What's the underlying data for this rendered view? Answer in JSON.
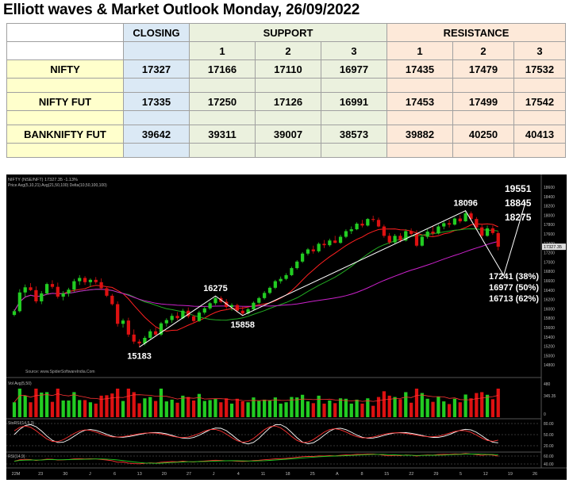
{
  "title": "Elliott waves & Market Outlook Monday, 26/09/2022",
  "table": {
    "header": {
      "closing": "CLOSING",
      "support": "SUPPORT",
      "resistance": "RESISTANCE",
      "levels": [
        "1",
        "2",
        "3"
      ]
    },
    "rows": [
      {
        "name": "NIFTY",
        "closing": "17327",
        "support": [
          "17166",
          "17110",
          "16977"
        ],
        "resistance": [
          "17435",
          "17479",
          "17532"
        ]
      },
      {
        "name": "NIFTY FUT",
        "closing": "17335",
        "support": [
          "17250",
          "17126",
          "16991"
        ],
        "resistance": [
          "17453",
          "17499",
          "17542"
        ]
      },
      {
        "name": "BANKNIFTY FUT",
        "closing": "39642",
        "support": [
          "39311",
          "39007",
          "38573"
        ],
        "resistance": [
          "39882",
          "40250",
          "40413"
        ]
      }
    ]
  },
  "chart_data": {
    "type": "candlestick",
    "panel_header": "NIFTY (NSE/NFT) 17327.35 -1.13%",
    "sub_header": "Price   Avg(5,10,21)   Avg(21,50,100)   Delta(10,50,100,100)",
    "source": "Source: www.SpiderSoftwareIndia.Com",
    "colors": {
      "up": "#22cc22",
      "down": "#dd1111",
      "avg_short": "#ff2020",
      "avg_mid": "#22aa22",
      "avg_long": "#cc22cc",
      "wave_line": "#ffffff",
      "background": "#000000"
    },
    "ylim": [
      14600,
      18600
    ],
    "y_ticks": [
      "18600",
      "18400",
      "18200",
      "18000",
      "17800",
      "17600",
      "17400",
      "17200",
      "17000",
      "16800",
      "16600",
      "16400",
      "16200",
      "16000",
      "15800",
      "15600",
      "15400",
      "15200",
      "15000",
      "14800"
    ],
    "last_price_label": "17327.35",
    "x_ticks": [
      "22M",
      "23",
      "30",
      "J",
      "6",
      "13",
      "20",
      "27",
      "J",
      "4",
      "11",
      "18",
      "25",
      "A",
      "8",
      "15",
      "22",
      "29",
      "5",
      "12",
      "19",
      "26"
    ],
    "candles": [
      {
        "o": 15870,
        "h": 15990,
        "l": 15840,
        "c": 15950
      },
      {
        "o": 15950,
        "h": 16420,
        "l": 15920,
        "c": 16350
      },
      {
        "o": 16350,
        "h": 16520,
        "l": 16250,
        "c": 16460
      },
      {
        "o": 16460,
        "h": 16550,
        "l": 16380,
        "c": 16400
      },
      {
        "o": 16400,
        "h": 16480,
        "l": 16120,
        "c": 16160
      },
      {
        "o": 16160,
        "h": 16380,
        "l": 16100,
        "c": 16330
      },
      {
        "o": 16330,
        "h": 16560,
        "l": 16300,
        "c": 16530
      },
      {
        "o": 16530,
        "h": 16610,
        "l": 16430,
        "c": 16470
      },
      {
        "o": 16470,
        "h": 16560,
        "l": 16220,
        "c": 16260
      },
      {
        "o": 16260,
        "h": 16380,
        "l": 16180,
        "c": 16330
      },
      {
        "o": 16330,
        "h": 16450,
        "l": 16260,
        "c": 16410
      },
      {
        "o": 16410,
        "h": 16640,
        "l": 16360,
        "c": 16590
      },
      {
        "o": 16590,
        "h": 16720,
        "l": 16510,
        "c": 16660
      },
      {
        "o": 16660,
        "h": 16700,
        "l": 16510,
        "c": 16570
      },
      {
        "o": 16570,
        "h": 16650,
        "l": 16470,
        "c": 16620
      },
      {
        "o": 16620,
        "h": 16680,
        "l": 16530,
        "c": 16570
      },
      {
        "o": 16570,
        "h": 16650,
        "l": 16400,
        "c": 16440
      },
      {
        "o": 16440,
        "h": 16480,
        "l": 16250,
        "c": 16280
      },
      {
        "o": 16280,
        "h": 16320,
        "l": 16070,
        "c": 16100
      },
      {
        "o": 16100,
        "h": 16160,
        "l": 15620,
        "c": 15680
      },
      {
        "o": 15680,
        "h": 15790,
        "l": 15600,
        "c": 15750
      },
      {
        "o": 15750,
        "h": 15810,
        "l": 15400,
        "c": 15450
      },
      {
        "o": 15450,
        "h": 15560,
        "l": 15250,
        "c": 15300
      },
      {
        "o": 15300,
        "h": 15350,
        "l": 15183,
        "c": 15260
      },
      {
        "o": 15260,
        "h": 15420,
        "l": 15220,
        "c": 15380
      },
      {
        "o": 15380,
        "h": 15560,
        "l": 15350,
        "c": 15520
      },
      {
        "o": 15520,
        "h": 15600,
        "l": 15410,
        "c": 15450
      },
      {
        "o": 15450,
        "h": 15720,
        "l": 15420,
        "c": 15690
      },
      {
        "o": 15690,
        "h": 15800,
        "l": 15620,
        "c": 15760
      },
      {
        "o": 15760,
        "h": 15900,
        "l": 15700,
        "c": 15850
      },
      {
        "o": 15850,
        "h": 15930,
        "l": 15760,
        "c": 15800
      },
      {
        "o": 15800,
        "h": 16000,
        "l": 15780,
        "c": 15960
      },
      {
        "o": 15960,
        "h": 16030,
        "l": 15800,
        "c": 15840
      },
      {
        "o": 15840,
        "h": 15870,
        "l": 15700,
        "c": 15740
      },
      {
        "o": 15740,
        "h": 15960,
        "l": 15720,
        "c": 15920
      },
      {
        "o": 15920,
        "h": 16050,
        "l": 15880,
        "c": 16010
      },
      {
        "o": 16010,
        "h": 16150,
        "l": 15980,
        "c": 16120
      },
      {
        "o": 16120,
        "h": 16275,
        "l": 16080,
        "c": 16230
      },
      {
        "o": 16230,
        "h": 16270,
        "l": 16120,
        "c": 16150
      },
      {
        "o": 16150,
        "h": 16210,
        "l": 16000,
        "c": 16040
      },
      {
        "o": 16040,
        "h": 16120,
        "l": 15960,
        "c": 16080
      },
      {
        "o": 16080,
        "h": 16110,
        "l": 15920,
        "c": 15960
      },
      {
        "o": 15960,
        "h": 16050,
        "l": 15858,
        "c": 15900
      },
      {
        "o": 15900,
        "h": 16020,
        "l": 15880,
        "c": 15990
      },
      {
        "o": 15990,
        "h": 16160,
        "l": 15960,
        "c": 16130
      },
      {
        "o": 16130,
        "h": 16260,
        "l": 16100,
        "c": 16230
      },
      {
        "o": 16230,
        "h": 16380,
        "l": 16200,
        "c": 16340
      },
      {
        "o": 16340,
        "h": 16480,
        "l": 16310,
        "c": 16450
      },
      {
        "o": 16450,
        "h": 16620,
        "l": 16420,
        "c": 16590
      },
      {
        "o": 16590,
        "h": 16690,
        "l": 16540,
        "c": 16640
      },
      {
        "o": 16640,
        "h": 16760,
        "l": 16610,
        "c": 16720
      },
      {
        "o": 16720,
        "h": 16900,
        "l": 16700,
        "c": 16870
      },
      {
        "o": 16870,
        "h": 17040,
        "l": 16840,
        "c": 17010
      },
      {
        "o": 17010,
        "h": 17210,
        "l": 16980,
        "c": 17180
      },
      {
        "o": 17180,
        "h": 17300,
        "l": 17140,
        "c": 17270
      },
      {
        "o": 17270,
        "h": 17350,
        "l": 17180,
        "c": 17230
      },
      {
        "o": 17230,
        "h": 17420,
        "l": 17200,
        "c": 17390
      },
      {
        "o": 17390,
        "h": 17470,
        "l": 17300,
        "c": 17360
      },
      {
        "o": 17360,
        "h": 17500,
        "l": 17330,
        "c": 17460
      },
      {
        "o": 17460,
        "h": 17560,
        "l": 17400,
        "c": 17410
      },
      {
        "o": 17410,
        "h": 17580,
        "l": 17390,
        "c": 17540
      },
      {
        "o": 17540,
        "h": 17700,
        "l": 17510,
        "c": 17660
      },
      {
        "o": 17660,
        "h": 17760,
        "l": 17600,
        "c": 17700
      },
      {
        "o": 17700,
        "h": 17850,
        "l": 17680,
        "c": 17820
      },
      {
        "o": 17820,
        "h": 17900,
        "l": 17740,
        "c": 17780
      },
      {
        "o": 17780,
        "h": 17940,
        "l": 17760,
        "c": 17920
      },
      {
        "o": 17920,
        "h": 17990,
        "l": 17860,
        "c": 17900
      },
      {
        "o": 17900,
        "h": 17950,
        "l": 17740,
        "c": 17760
      },
      {
        "o": 17760,
        "h": 17800,
        "l": 17520,
        "c": 17560
      },
      {
        "o": 17560,
        "h": 17620,
        "l": 17380,
        "c": 17420
      },
      {
        "o": 17420,
        "h": 17600,
        "l": 17390,
        "c": 17560
      },
      {
        "o": 17560,
        "h": 17620,
        "l": 17420,
        "c": 17460
      },
      {
        "o": 17460,
        "h": 17700,
        "l": 17440,
        "c": 17660
      },
      {
        "o": 17660,
        "h": 17720,
        "l": 17560,
        "c": 17600
      },
      {
        "o": 17600,
        "h": 17680,
        "l": 17320,
        "c": 17350
      },
      {
        "o": 17350,
        "h": 17580,
        "l": 17330,
        "c": 17540
      },
      {
        "o": 17540,
        "h": 17700,
        "l": 17500,
        "c": 17650
      },
      {
        "o": 17650,
        "h": 17760,
        "l": 17560,
        "c": 17610
      },
      {
        "o": 17610,
        "h": 17800,
        "l": 17590,
        "c": 17760
      },
      {
        "o": 17760,
        "h": 17880,
        "l": 17700,
        "c": 17830
      },
      {
        "o": 17830,
        "h": 17900,
        "l": 17740,
        "c": 17800
      },
      {
        "o": 17800,
        "h": 17960,
        "l": 17780,
        "c": 17930
      },
      {
        "o": 17930,
        "h": 18000,
        "l": 17830,
        "c": 17870
      },
      {
        "o": 17870,
        "h": 18096,
        "l": 17860,
        "c": 18040
      },
      {
        "o": 18040,
        "h": 18080,
        "l": 17880,
        "c": 17920
      },
      {
        "o": 17920,
        "h": 17960,
        "l": 17700,
        "c": 17740
      },
      {
        "o": 17740,
        "h": 17800,
        "l": 17520,
        "c": 17560
      },
      {
        "o": 17560,
        "h": 17780,
        "l": 17540,
        "c": 17720
      },
      {
        "o": 17720,
        "h": 17780,
        "l": 17580,
        "c": 17620
      },
      {
        "o": 17620,
        "h": 17660,
        "l": 17250,
        "c": 17327
      }
    ],
    "annotations": [
      {
        "text": "16275",
        "price": 16275,
        "idx": 37,
        "pos": "above"
      },
      {
        "text": "15858",
        "price": 15858,
        "idx": 42,
        "pos": "below"
      },
      {
        "text": "15183",
        "price": 15183,
        "idx": 23,
        "pos": "below"
      },
      {
        "text": "18096",
        "price": 18096,
        "idx": 83,
        "pos": "above"
      }
    ],
    "targets_up": [
      "19551",
      "18845",
      "18275"
    ],
    "targets_down": [
      "17241 (38%)",
      "16977 (50%)",
      "16713 (62%)"
    ],
    "wave_path": [
      {
        "idx": 23,
        "price": 15183
      },
      {
        "idx": 37,
        "price": 16275
      },
      {
        "idx": 42,
        "price": 15858
      },
      {
        "idx": 83,
        "price": 18096
      },
      {
        "idx": 90,
        "price": 16713
      },
      {
        "idx": 94,
        "price": 18275
      }
    ],
    "volume_panel": {
      "label": "Vol   Avg(5,50)",
      "axis": [
        "480",
        "345.35",
        "0"
      ]
    },
    "osc1_panel": {
      "label": "StoRSI(14,5,3)",
      "axis": [
        "80.00",
        "50.00",
        "20.00"
      ]
    },
    "osc2_panel": {
      "label": "RSI(14,9)",
      "axis": [
        "60.00",
        "40.00"
      ]
    }
  }
}
